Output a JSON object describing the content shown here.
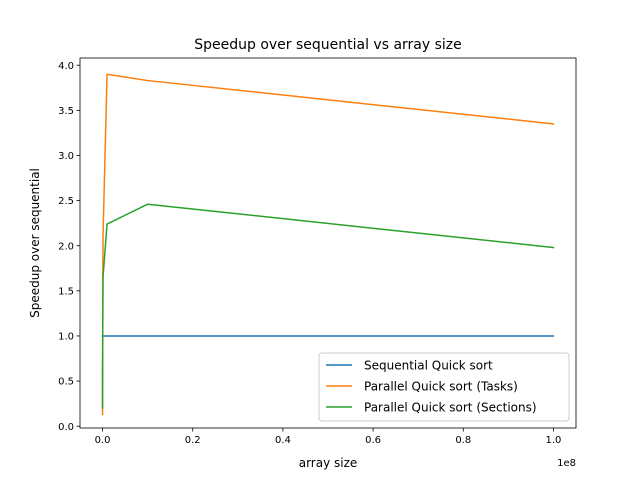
{
  "chart_data": {
    "type": "line",
    "title": "Speedup over sequential vs array size",
    "xlabel": "array size",
    "ylabel": "Speedup over sequential",
    "x_offset_label": "1e8",
    "xlim": [
      -0.05,
      1.05
    ],
    "ylim": [
      -0.02,
      4.08
    ],
    "x_ticks": [
      0.0,
      0.2,
      0.4,
      0.6,
      0.8,
      1.0
    ],
    "x_tick_labels": [
      "0.0",
      "0.2",
      "0.4",
      "0.6",
      "0.8",
      "1.0"
    ],
    "y_ticks": [
      0.0,
      0.5,
      1.0,
      1.5,
      2.0,
      2.5,
      3.0,
      3.5,
      4.0
    ],
    "y_tick_labels": [
      "0.0",
      "0.5",
      "1.0",
      "1.5",
      "2.0",
      "2.5",
      "3.0",
      "3.5",
      "4.0"
    ],
    "grid": false,
    "legend_position": "lower-right",
    "series": [
      {
        "name": "Sequential Quick sort",
        "color": "#1f77b4",
        "x": [
          0,
          1e-05,
          0.0001,
          0.001,
          0.01,
          0.1,
          1.0
        ],
        "y": [
          1.0,
          1.0,
          1.0,
          1.0,
          1.0,
          1.0,
          1.0
        ]
      },
      {
        "name": "Parallel Quick sort (Tasks)",
        "color": "#ff7f0e",
        "x": [
          0,
          1e-05,
          0.0001,
          0.001,
          0.01,
          0.1,
          1.0
        ],
        "y": [
          0.65,
          0.13,
          0.45,
          2.1,
          3.9,
          3.83,
          3.35
        ]
      },
      {
        "name": "Parallel Quick sort (Sections)",
        "color": "#2ca02c",
        "x": [
          0,
          1e-05,
          0.0001,
          0.001,
          0.01,
          0.1,
          1.0
        ],
        "y": [
          0.7,
          0.2,
          0.67,
          1.65,
          2.24,
          2.46,
          1.98
        ]
      }
    ]
  }
}
